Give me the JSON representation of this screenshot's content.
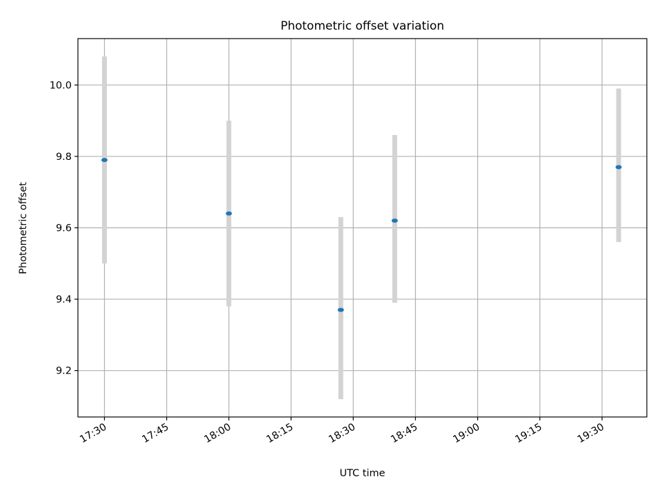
{
  "chart_data": {
    "type": "scatter",
    "title": "Photometric offset variation",
    "xlabel": "UTC time",
    "ylabel": "Photometric offset",
    "x_tick_labels": [
      "17:30",
      "17:45",
      "18:00",
      "18:15",
      "18:30",
      "18:45",
      "19:00",
      "19:15",
      "19:30"
    ],
    "y_tick_labels": [
      "9.2",
      "9.4",
      "9.6",
      "9.8",
      "10.0"
    ],
    "xlim": [
      "17:23.6",
      "19:40.8"
    ],
    "ylim": [
      9.07,
      10.13
    ],
    "grid": true,
    "legend": "none",
    "series": [
      {
        "color": "#1f77b4",
        "errorbar_color": "#d3d3d3",
        "points": [
          {
            "x": "17:30",
            "y": 9.79,
            "y_low": 9.5,
            "y_high": 10.08
          },
          {
            "x": "18:00",
            "y": 9.64,
            "y_low": 9.38,
            "y_high": 9.9
          },
          {
            "x": "18:27",
            "y": 9.37,
            "y_low": 9.12,
            "y_high": 9.63
          },
          {
            "x": "18:40",
            "y": 9.62,
            "y_low": 9.39,
            "y_high": 9.86
          },
          {
            "x": "19:34",
            "y": 9.77,
            "y_low": 9.56,
            "y_high": 9.99
          }
        ]
      }
    ]
  }
}
